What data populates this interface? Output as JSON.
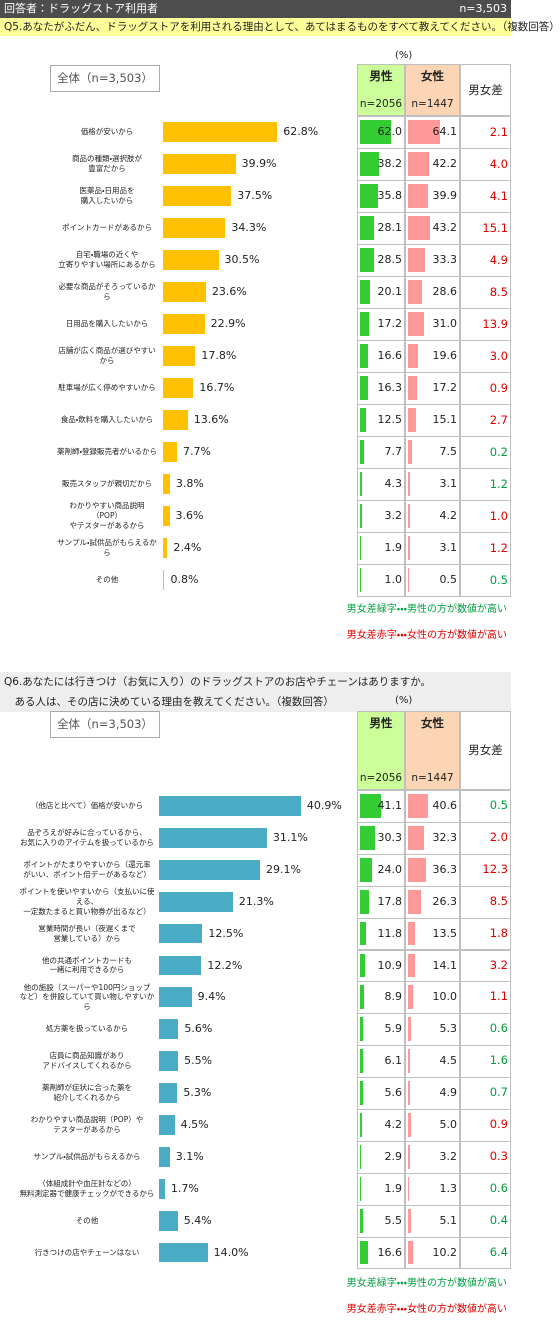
{
  "header": {
    "label": "回答者：ドラッグストア利用者",
    "n": "n=3,503"
  },
  "diff_colors": {
    "male_higher": "#00a040",
    "female_higher": "#e00000"
  },
  "sections": [
    {
      "question": [
        "Q5.あなたがふだん、ドラッグストアを利用される理由として、あてはまるものをすべて教えてください。（複数回答）"
      ],
      "unit": "(%)",
      "total_label": "全体（n=3,503）",
      "categories": [
        "価格が安いから",
        "商品の種類・選択肢が\n豊富だから",
        "医薬品・日用品を\n購入したいから",
        "ポイントカードがあるから",
        "自宅・職場の近くや\n立寄りやすい場所にあるから",
        "必要な商品がそろっているから",
        "日用品を購入したいから",
        "店舗が広く商品が選びやすいから",
        "駐車場が広く停めやすいから",
        "食品・飲料を購入したいから",
        "薬剤師・登録販売者がいるから",
        "販売スタッフが親切だから",
        "わかりやすい商品説明（POP）\nやテスターがあるから",
        "サンプル・試供品がもらえるから",
        "その他"
      ],
      "total": {
        "color": "#ffc000",
        "values": [
          62.8,
          39.9,
          37.5,
          34.3,
          30.5,
          23.6,
          22.9,
          17.8,
          16.7,
          13.6,
          7.7,
          3.8,
          3.6,
          2.4,
          0.8
        ],
        "value_labels": [
          "62.8%",
          "39.9%",
          "37.5%",
          "34.3%",
          "30.5%",
          "23.6%",
          "22.9%",
          "17.8%",
          "16.7%",
          "13.6%",
          "7.7%",
          "3.8%",
          "3.6%",
          "2.4%",
          "0.8%"
        ]
      },
      "male": {
        "name": "男性",
        "n": "n=2056",
        "color": "#33cc33",
        "values": [
          62.0,
          38.2,
          35.8,
          28.1,
          28.5,
          20.1,
          17.2,
          16.6,
          16.3,
          12.5,
          7.7,
          4.3,
          3.2,
          1.9,
          1.0
        ],
        "value_labels": [
          "62.0",
          "38.2",
          "35.8",
          "28.1",
          "28.5",
          "20.1",
          "17.2",
          "16.6",
          "16.3",
          "12.5",
          "7.7",
          "4.3",
          "3.2",
          "1.9",
          "1.0"
        ]
      },
      "female": {
        "name": "女性",
        "n": "n=1447",
        "color": "#ff9999",
        "values": [
          64.1,
          42.2,
          39.9,
          43.2,
          33.3,
          28.6,
          31.0,
          19.6,
          17.2,
          15.1,
          7.5,
          3.1,
          4.2,
          3.1,
          0.5
        ],
        "value_labels": [
          "64.1",
          "42.2",
          "39.9",
          "43.2",
          "33.3",
          "28.6",
          "31.0",
          "19.6",
          "17.2",
          "15.1",
          "7.5",
          "3.1",
          "4.2",
          "3.1",
          "0.5"
        ]
      },
      "diff": {
        "name": "男女差",
        "values": [
          2.1,
          4.0,
          4.1,
          15.1,
          4.9,
          8.5,
          13.9,
          3.0,
          0.9,
          2.7,
          0.2,
          1.2,
          1.0,
          1.2,
          0.5
        ],
        "value_labels": [
          "2.1",
          "4.0",
          "4.1",
          "15.1",
          "4.9",
          "8.5",
          "13.9",
          "3.0",
          "0.9",
          "2.7",
          "0.2",
          "1.2",
          "1.0",
          "1.2",
          "0.5"
        ]
      },
      "notes": [
        "男女差緑字・・・男性の方が数値が高い",
        "男女差赤字・・・女性の方が数値が高い"
      ]
    },
    {
      "question": [
        "Q6.あなたには行きつけ（お気に入り）のドラッグストアのお店やチェーンはありますか。",
        "　ある人は、その店に決めている理由を教えてください。（複数回答）"
      ],
      "unit": "(%)",
      "total_label": "全体（n=3,503）",
      "categories": [
        "（他店と比べて）価格が安いから",
        "品ぞろえが好みに合っているから、\nお気に入りのアイテムを扱っているから",
        "ポイントがたまりやすいから（還元率\nがいい、ポイント倍デーがあるなど）",
        "ポイントを使いやすいから（支払いに使える、\n一定数たまると買い物券が出るなど）",
        "営業時間が長い（夜遅くまで\n営業している）から",
        "他の共通ポイントカードも\n一緒に利用できるから",
        "他の施設（スーパーや100円ショップ\nなど）を併設していて買い物しやすいから",
        "処方薬を扱っているから",
        "店員に商品知識があり\nアドバイスしてくれるから",
        "薬剤師が症状に合った薬を\n紹介してくれるから",
        "わかりやすい商品説明（POP）や\nテスターがあるから",
        "サンプル・試供品がもらえるから",
        "（体組成計や血圧計などの）\n無料測定器で健康チェックができるから",
        "その他",
        "行きつけの店やチェーンはない"
      ],
      "total": {
        "color": "#4bacc6",
        "values": [
          40.9,
          31.1,
          29.1,
          21.3,
          12.5,
          12.2,
          9.4,
          5.6,
          5.5,
          5.3,
          4.5,
          3.1,
          1.7,
          5.4,
          14.0
        ],
        "value_labels": [
          "40.9%",
          "31.1%",
          "29.1%",
          "21.3%",
          "12.5%",
          "12.2%",
          "9.4%",
          "5.6%",
          "5.5%",
          "5.3%",
          "4.5%",
          "3.1%",
          "1.7%",
          "5.4%",
          "14.0%"
        ]
      },
      "male": {
        "name": "男性",
        "n": "n=2056",
        "color": "#33cc33",
        "values": [
          41.1,
          30.3,
          24.0,
          17.8,
          11.8,
          10.9,
          8.9,
          5.9,
          6.1,
          5.6,
          4.2,
          2.9,
          1.9,
          5.5,
          16.6
        ],
        "value_labels": [
          "41.1",
          "30.3",
          "24.0",
          "17.8",
          "11.8",
          "10.9",
          "8.9",
          "5.9",
          "6.1",
          "5.6",
          "4.2",
          "2.9",
          "1.9",
          "5.5",
          "16.6"
        ]
      },
      "female": {
        "name": "女性",
        "n": "n=1447",
        "color": "#ff9999",
        "values": [
          40.6,
          32.3,
          36.3,
          26.3,
          13.5,
          14.1,
          10.0,
          5.3,
          4.5,
          4.9,
          5.0,
          3.2,
          1.3,
          5.1,
          10.2
        ],
        "value_labels": [
          "40.6",
          "32.3",
          "36.3",
          "26.3",
          "13.5",
          "14.1",
          "10.0",
          "5.3",
          "4.5",
          "4.9",
          "5.0",
          "3.2",
          "1.3",
          "5.1",
          "10.2"
        ]
      },
      "diff": {
        "name": "男女差",
        "values": [
          0.5,
          2.0,
          12.3,
          8.5,
          1.8,
          3.2,
          1.1,
          0.6,
          1.6,
          0.7,
          0.9,
          0.3,
          0.6,
          0.4,
          6.4
        ],
        "value_labels": [
          "0.5",
          "2.0",
          "12.3",
          "8.5",
          "1.8",
          "3.2",
          "1.1",
          "0.6",
          "1.6",
          "0.7",
          "0.9",
          "0.3",
          "0.6",
          "0.4",
          "6.4"
        ]
      },
      "notes": [
        "男女差緑字・・・男性の方が数値が高い",
        "男女差赤字・・・女性の方が数値が高い"
      ]
    }
  ]
}
